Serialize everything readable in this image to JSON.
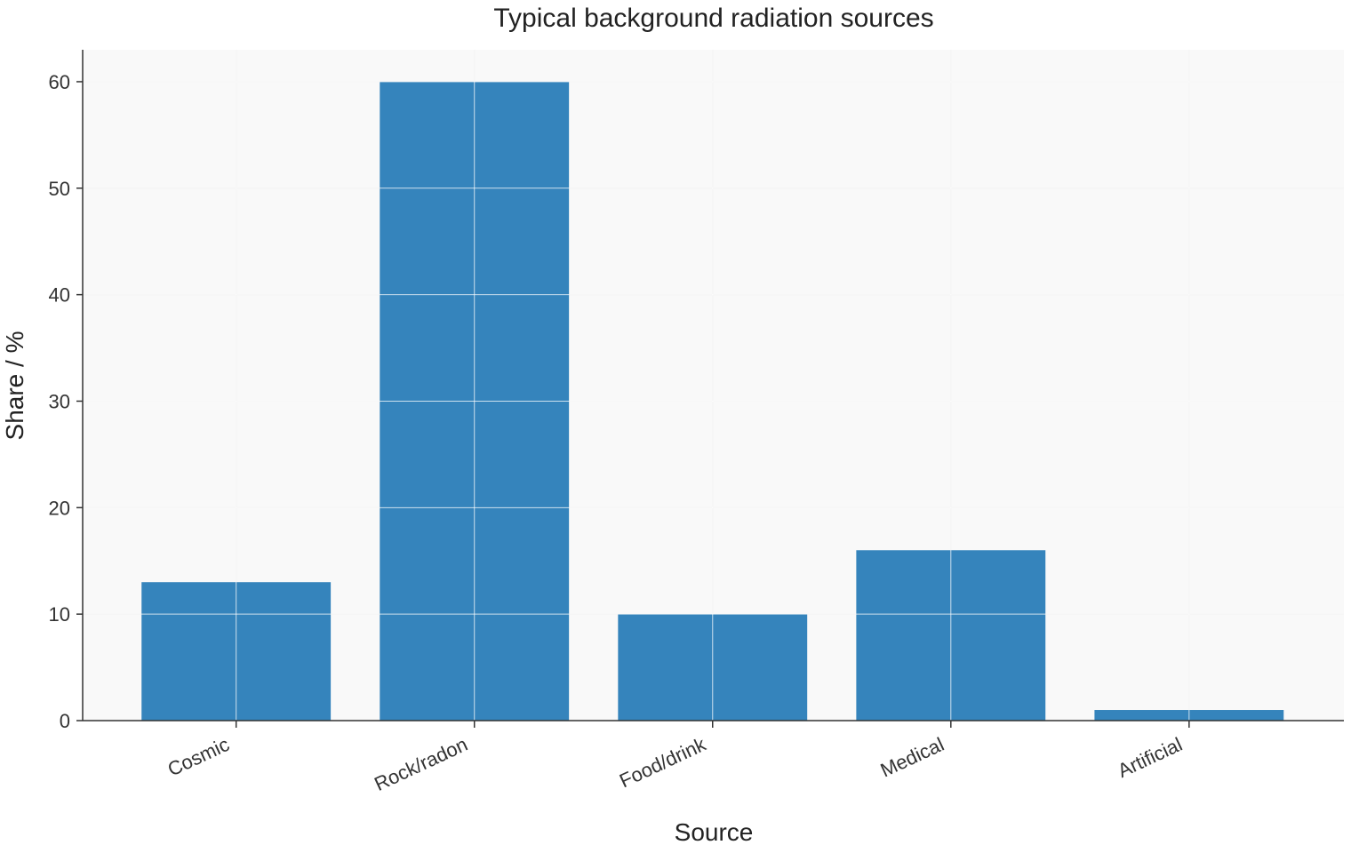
{
  "chart_data": {
    "type": "bar",
    "title": "Typical background radiation sources",
    "xlabel": "Source",
    "ylabel": "Share / %",
    "categories": [
      "Cosmic",
      "Rock/radon",
      "Food/drink",
      "Medical",
      "Artificial"
    ],
    "values": [
      13,
      60,
      10,
      16,
      1
    ],
    "ylim": [
      0,
      63
    ],
    "yticks": [
      0,
      10,
      20,
      30,
      40,
      50,
      60
    ],
    "grid": true,
    "legend": "none",
    "colors": {
      "bar": "#3584bc",
      "plot_background": "#f9f9f9",
      "axis": "#333333"
    }
  }
}
